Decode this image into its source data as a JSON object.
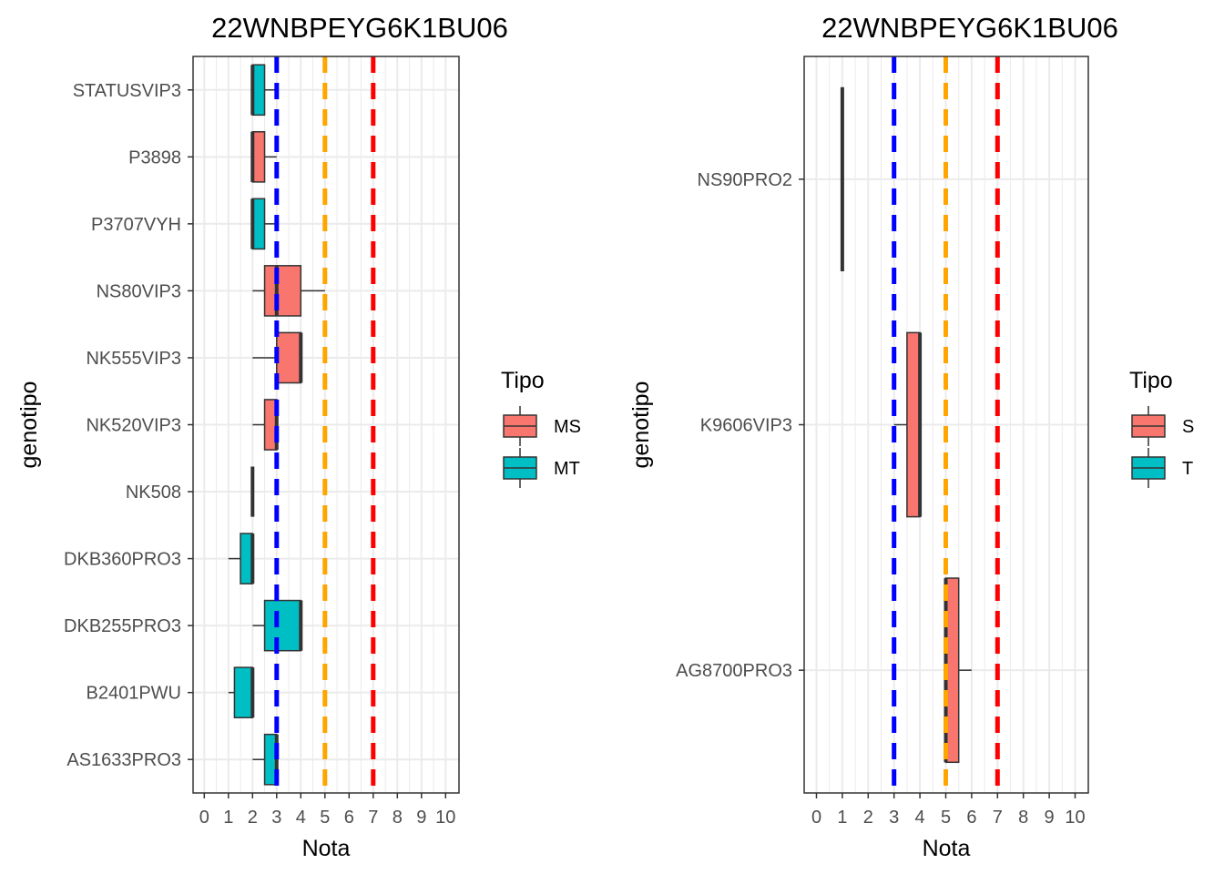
{
  "chart_data": [
    {
      "type": "box",
      "title": "22WNBPEYG6K1BU06",
      "xlabel": "Nota",
      "ylabel": "genotipo",
      "xlim": [
        -0.5,
        10.5
      ],
      "xticks": [
        0,
        1,
        2,
        3,
        4,
        5,
        6,
        7,
        8,
        9,
        10
      ],
      "grid": true,
      "reference_lines": [
        {
          "x": 3,
          "color": "#0000ff"
        },
        {
          "x": 5,
          "color": "#ffa500"
        },
        {
          "x": 7,
          "color": "#ff0000"
        }
      ],
      "legend": {
        "title": "Tipo",
        "placement": "right",
        "entries": [
          {
            "name": "MS",
            "color": "#f8766d"
          },
          {
            "name": "MT",
            "color": "#00bfc4"
          }
        ]
      },
      "categories": [
        "STATUSVIP3",
        "P3898",
        "P3707VYH",
        "NS80VIP3",
        "NK555VIP3",
        "NK520VIP3",
        "NK508",
        "DKB360PRO3",
        "DKB255PRO3",
        "B2401PWU",
        "AS1633PRO3"
      ],
      "boxes": [
        {
          "category": "STATUSVIP3",
          "tipo": "MT",
          "min": 2,
          "q1": 2,
          "median": 2,
          "q3": 2.5,
          "max": 3
        },
        {
          "category": "P3898",
          "tipo": "MS",
          "min": 2,
          "q1": 2,
          "median": 2,
          "q3": 2.5,
          "max": 3
        },
        {
          "category": "P3707VYH",
          "tipo": "MT",
          "min": 2,
          "q1": 2,
          "median": 2,
          "q3": 2.5,
          "max": 3
        },
        {
          "category": "NS80VIP3",
          "tipo": "MS",
          "min": 2,
          "q1": 2.5,
          "median": 3,
          "q3": 4,
          "max": 5
        },
        {
          "category": "NK555VIP3",
          "tipo": "MS",
          "min": 2,
          "q1": 3,
          "median": 4,
          "q3": 4,
          "max": 4
        },
        {
          "category": "NK520VIP3",
          "tipo": "MS",
          "min": 2,
          "q1": 2.5,
          "median": 3,
          "q3": 3,
          "max": 3
        },
        {
          "category": "NK508",
          "tipo": "MS",
          "min": 2,
          "q1": 2,
          "median": 2,
          "q3": 2,
          "max": 2
        },
        {
          "category": "DKB360PRO3",
          "tipo": "MT",
          "min": 1,
          "q1": 1.5,
          "median": 2,
          "q3": 2,
          "max": 2
        },
        {
          "category": "DKB255PRO3",
          "tipo": "MT",
          "min": 2,
          "q1": 2.5,
          "median": 4,
          "q3": 4,
          "max": 4
        },
        {
          "category": "B2401PWU",
          "tipo": "MT",
          "min": 1,
          "q1": 1.25,
          "median": 2,
          "q3": 2,
          "max": 2
        },
        {
          "category": "AS1633PRO3",
          "tipo": "MT",
          "min": 2,
          "q1": 2.5,
          "median": 3,
          "q3": 3,
          "max": 3
        }
      ]
    },
    {
      "type": "box",
      "title": "22WNBPEYG6K1BU06",
      "xlabel": "Nota",
      "ylabel": "genotipo",
      "xlim": [
        -0.5,
        10.5
      ],
      "xticks": [
        0,
        1,
        2,
        3,
        4,
        5,
        6,
        7,
        8,
        9,
        10
      ],
      "grid": true,
      "reference_lines": [
        {
          "x": 3,
          "color": "#0000ff"
        },
        {
          "x": 5,
          "color": "#ffa500"
        },
        {
          "x": 7,
          "color": "#ff0000"
        }
      ],
      "legend": {
        "title": "Tipo",
        "placement": "right",
        "entries": [
          {
            "name": "S",
            "color": "#f8766d"
          },
          {
            "name": "T",
            "color": "#00bfc4"
          }
        ]
      },
      "categories": [
        "NS90PRO2",
        "K9606VIP3",
        "AG8700PRO3"
      ],
      "boxes": [
        {
          "category": "NS90PRO2",
          "tipo": "T",
          "min": 1,
          "q1": 1,
          "median": 1,
          "q3": 1,
          "max": 1
        },
        {
          "category": "K9606VIP3",
          "tipo": "S",
          "min": 3,
          "q1": 3.5,
          "median": 4,
          "q3": 4,
          "max": 4
        },
        {
          "category": "AG8700PRO3",
          "tipo": "S",
          "min": 5,
          "q1": 5,
          "median": 5,
          "q3": 5.5,
          "max": 6
        }
      ]
    }
  ]
}
